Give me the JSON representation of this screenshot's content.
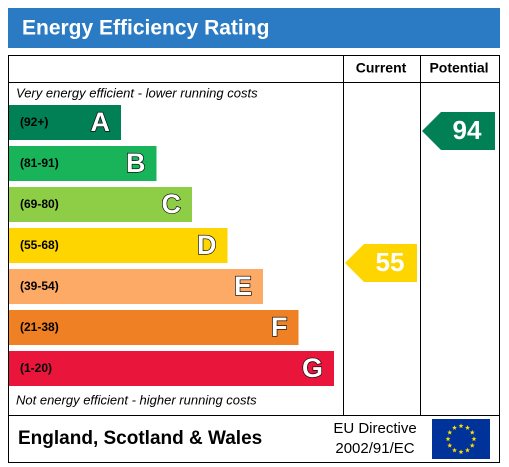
{
  "header": {
    "title": "Energy Efficiency Rating"
  },
  "columns": [
    "Current",
    "Potential"
  ],
  "top_note": "Very energy efficient - lower running costs",
  "bottom_note": "Not energy efficient - higher running costs",
  "bands": [
    {
      "range": "(92+)",
      "letter": "A"
    },
    {
      "range": "(81-91)",
      "letter": "B"
    },
    {
      "range": "(69-80)",
      "letter": "C"
    },
    {
      "range": "(55-68)",
      "letter": "D"
    },
    {
      "range": "(39-54)",
      "letter": "E"
    },
    {
      "range": "(21-38)",
      "letter": "F"
    },
    {
      "range": "(1-20)",
      "letter": "G"
    }
  ],
  "current": "55",
  "potential": "94",
  "footer": {
    "region": "England, Scotland & Wales",
    "directive_line1": "EU Directive",
    "directive_line2": "2002/91/EC"
  }
}
